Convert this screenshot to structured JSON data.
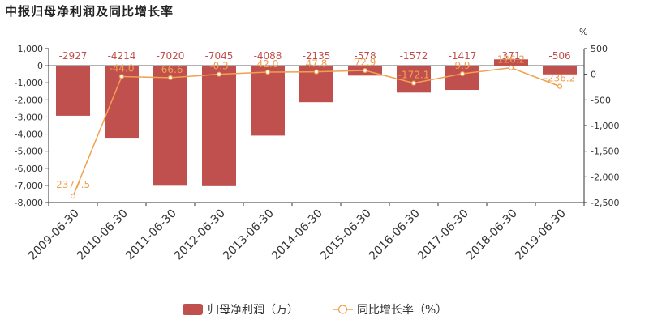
{
  "chart_data": {
    "title": "中报归母净利润及同比增长率",
    "type": "bar+line",
    "categories": [
      "2009-06-30",
      "2010-06-30",
      "2011-06-30",
      "2012-06-30",
      "2013-06-30",
      "2014-06-30",
      "2015-06-30",
      "2016-06-30",
      "2017-06-30",
      "2018-06-30",
      "2019-06-30"
    ],
    "series": [
      {
        "name": "归母净利润（万）",
        "type": "bar",
        "axis": "left",
        "values": [
          -2927,
          -4214,
          -7020,
          -7045,
          -4088,
          -2135,
          -578,
          -1572,
          -1417,
          371,
          -506
        ],
        "labels": [
          "-2927",
          "-4214",
          "-7020",
          "-7045",
          "-4088",
          "-2135",
          "-578",
          "-1572",
          "-1417",
          "371",
          "-506"
        ]
      },
      {
        "name": "同比增长率（%）",
        "type": "line",
        "axis": "right",
        "values": [
          -2377.5,
          -44.0,
          -66.6,
          -0.3,
          42.0,
          47.8,
          72.9,
          -172.1,
          9.9,
          126.2,
          -236.2
        ],
        "labels": [
          "-2377.5",
          "-44.0",
          "-66.6",
          "-0.3",
          "42.0",
          "47.8",
          "72.9",
          "-172.1",
          "9.9",
          "126.2",
          "-236.2"
        ]
      }
    ],
    "y_left": {
      "ylim": [
        -8000,
        1000
      ],
      "ticks": [
        1000,
        0,
        -1000,
        -2000,
        -3000,
        -4000,
        -5000,
        -6000,
        -7000,
        -8000
      ],
      "tick_labels": [
        "1,000",
        "0",
        "-1,000",
        "-2,000",
        "-3,000",
        "-4,000",
        "-5,000",
        "-6,000",
        "-7,000",
        "-8,000"
      ]
    },
    "y_right": {
      "unit": "%",
      "ylim": [
        -2500,
        500
      ],
      "ticks": [
        500,
        0,
        -500,
        -1000,
        -1500,
        -2000,
        -2500
      ],
      "tick_labels": [
        "500",
        "0",
        "-500",
        "-1,000",
        "-1,500",
        "-2,000",
        "-2,500"
      ]
    },
    "grid": false,
    "legend_position": "bottom",
    "colors": {
      "bar": "#c0504d",
      "line": "#f0a050",
      "axis": "#333333"
    }
  }
}
